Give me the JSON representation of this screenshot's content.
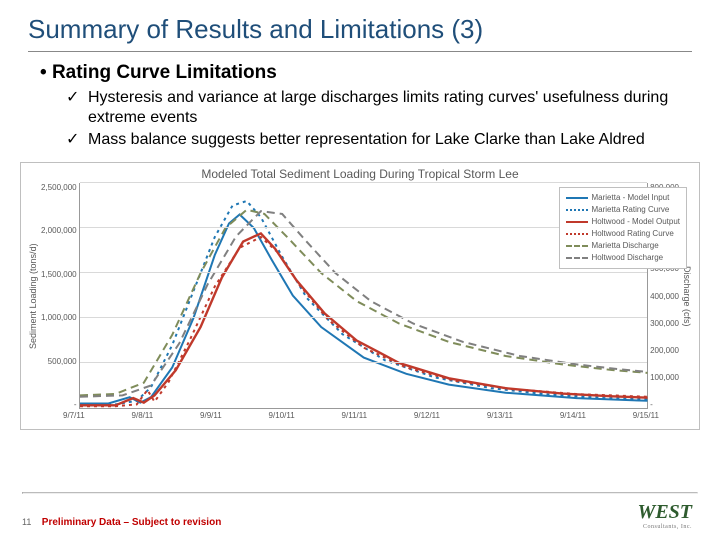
{
  "title": "Summary of Results and Limitations (3)",
  "heading_bullet": "•",
  "heading": "Rating Curve Limitations",
  "bullets": [
    "Hysteresis and variance at large discharges limits rating curves' usefulness during extreme events",
    "Mass balance suggests better representation for Lake Clarke than Lake Aldred"
  ],
  "check_glyph": "✓",
  "chart": {
    "title": "Modeled Total Sediment Loading During Tropical Storm Lee",
    "ylabel_left": "Sediment Loading (tons/d)",
    "ylabel_right": "Discharge (cfs)",
    "y_left": {
      "min": 0,
      "max": 2500000,
      "ticks": [
        "2,500,000",
        "2,000,000",
        "1,500,000",
        "1,000,000",
        "500,000",
        "-"
      ]
    },
    "y_right": {
      "min": 0,
      "max": 800000,
      "ticks": [
        "800,000",
        "700,000",
        "600,000",
        "500,000",
        "400,000",
        "300,000",
        "200,000",
        "100,000",
        "-"
      ]
    },
    "x_ticks": [
      "9/7/11",
      "9/8/11",
      "9/9/11",
      "9/10/11",
      "9/11/11",
      "9/12/11",
      "9/13/11",
      "9/14/11",
      "9/15/11"
    ],
    "grid_color": "#d9d9d9",
    "legend": [
      {
        "label": "Marietta - Model Input",
        "color": "#1f77b4",
        "style": "solid"
      },
      {
        "label": "Marietta Rating Curve",
        "color": "#1f77b4",
        "style": "dotted"
      },
      {
        "label": "Holtwood - Model Output",
        "color": "#c0392b",
        "style": "solid"
      },
      {
        "label": "Holtwood Rating Curve",
        "color": "#c0392b",
        "style": "dotted"
      },
      {
        "label": "Marietta Discharge",
        "color": "#7f8c5a",
        "style": "dashed"
      },
      {
        "label": "Holtwood Discharge",
        "color": "#808080",
        "style": "dashed"
      }
    ],
    "series": {
      "marietta_model": {
        "color": "#1f77b4",
        "width": 2,
        "dash": "",
        "axis": "left",
        "points": [
          [
            0,
            50000
          ],
          [
            0.4,
            50000
          ],
          [
            0.7,
            120000
          ],
          [
            0.85,
            60000
          ],
          [
            1.0,
            120000
          ],
          [
            1.3,
            450000
          ],
          [
            1.6,
            1000000
          ],
          [
            1.9,
            1700000
          ],
          [
            2.1,
            2050000
          ],
          [
            2.25,
            2150000
          ],
          [
            2.45,
            2000000
          ],
          [
            2.7,
            1650000
          ],
          [
            3.0,
            1250000
          ],
          [
            3.4,
            900000
          ],
          [
            4.0,
            560000
          ],
          [
            4.6,
            380000
          ],
          [
            5.2,
            260000
          ],
          [
            6.0,
            170000
          ],
          [
            7.0,
            110000
          ],
          [
            8.0,
            80000
          ]
        ]
      },
      "marietta_rating": {
        "color": "#1f77b4",
        "width": 2,
        "dash": "3,4",
        "axis": "left",
        "points": [
          [
            0,
            40000
          ],
          [
            0.5,
            40000
          ],
          [
            0.8,
            80000
          ],
          [
            1.0,
            230000
          ],
          [
            1.3,
            700000
          ],
          [
            1.6,
            1300000
          ],
          [
            1.9,
            1900000
          ],
          [
            2.15,
            2250000
          ],
          [
            2.35,
            2300000
          ],
          [
            2.55,
            2120000
          ],
          [
            2.85,
            1680000
          ],
          [
            3.2,
            1220000
          ],
          [
            3.7,
            820000
          ],
          [
            4.3,
            530000
          ],
          [
            5.0,
            340000
          ],
          [
            5.8,
            220000
          ],
          [
            6.6,
            150000
          ],
          [
            7.4,
            110000
          ],
          [
            8.0,
            95000
          ]
        ]
      },
      "holtwood_model": {
        "color": "#c0392b",
        "width": 2.4,
        "dash": "",
        "axis": "left",
        "points": [
          [
            0,
            30000
          ],
          [
            0.5,
            30000
          ],
          [
            0.75,
            110000
          ],
          [
            0.9,
            60000
          ],
          [
            1.05,
            140000
          ],
          [
            1.35,
            420000
          ],
          [
            1.7,
            900000
          ],
          [
            2.0,
            1450000
          ],
          [
            2.3,
            1850000
          ],
          [
            2.55,
            1940000
          ],
          [
            2.75,
            1770000
          ],
          [
            3.05,
            1420000
          ],
          [
            3.45,
            1050000
          ],
          [
            3.9,
            750000
          ],
          [
            4.5,
            500000
          ],
          [
            5.2,
            330000
          ],
          [
            6.0,
            220000
          ],
          [
            6.8,
            160000
          ],
          [
            7.5,
            130000
          ],
          [
            8.0,
            115000
          ]
        ]
      },
      "holtwood_rating": {
        "color": "#c0392b",
        "width": 2,
        "dash": "3,4",
        "axis": "left",
        "points": [
          [
            0,
            20000
          ],
          [
            0.5,
            20000
          ],
          [
            0.8,
            40000
          ],
          [
            0.95,
            200000
          ],
          [
            1.05,
            70000
          ],
          [
            1.25,
            290000
          ],
          [
            1.55,
            760000
          ],
          [
            1.9,
            1350000
          ],
          [
            2.25,
            1780000
          ],
          [
            2.55,
            1900000
          ],
          [
            2.8,
            1720000
          ],
          [
            3.1,
            1360000
          ],
          [
            3.5,
            980000
          ],
          [
            4.0,
            670000
          ],
          [
            4.6,
            450000
          ],
          [
            5.3,
            300000
          ],
          [
            6.1,
            210000
          ],
          [
            7.0,
            155000
          ],
          [
            8.0,
            125000
          ]
        ]
      },
      "marietta_discharge": {
        "color": "#7f8c5a",
        "width": 2,
        "dash": "8,5",
        "axis": "right",
        "points": [
          [
            0,
            45000
          ],
          [
            0.5,
            50000
          ],
          [
            0.9,
            90000
          ],
          [
            1.3,
            260000
          ],
          [
            1.7,
            480000
          ],
          [
            2.05,
            640000
          ],
          [
            2.35,
            705000
          ],
          [
            2.6,
            690000
          ],
          [
            2.95,
            600000
          ],
          [
            3.4,
            480000
          ],
          [
            3.9,
            380000
          ],
          [
            4.5,
            300000
          ],
          [
            5.2,
            235000
          ],
          [
            6.0,
            185000
          ],
          [
            6.8,
            155000
          ],
          [
            7.5,
            135000
          ],
          [
            8.0,
            125000
          ]
        ]
      },
      "holtwood_discharge": {
        "color": "#808080",
        "width": 2,
        "dash": "8,5",
        "axis": "right",
        "points": [
          [
            0,
            40000
          ],
          [
            0.6,
            45000
          ],
          [
            1.0,
            80000
          ],
          [
            1.4,
            230000
          ],
          [
            1.8,
            440000
          ],
          [
            2.2,
            610000
          ],
          [
            2.55,
            700000
          ],
          [
            2.85,
            690000
          ],
          [
            3.2,
            590000
          ],
          [
            3.6,
            480000
          ],
          [
            4.1,
            380000
          ],
          [
            4.7,
            300000
          ],
          [
            5.4,
            235000
          ],
          [
            6.2,
            185000
          ],
          [
            7.0,
            155000
          ],
          [
            7.6,
            138000
          ],
          [
            8.0,
            128000
          ]
        ]
      }
    }
  },
  "page_number": "11",
  "disclaimer": "Preliminary Data – Subject to revision",
  "logo_text": "WEST",
  "logo_sub": "Consultants, Inc."
}
